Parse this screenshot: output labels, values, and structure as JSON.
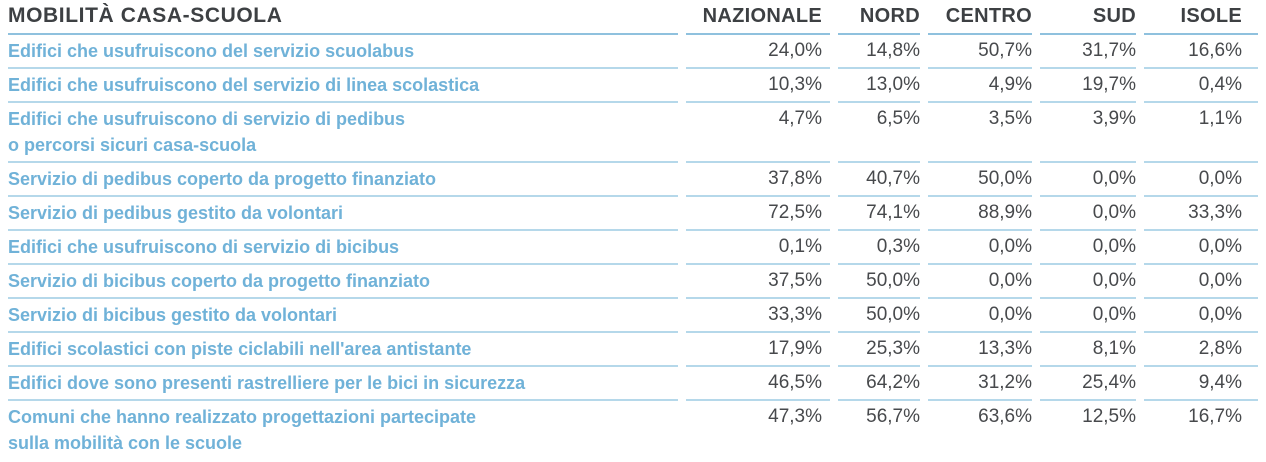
{
  "table": {
    "title": "MOBILITÀ CASA-SCUOLA",
    "columns": [
      "NAZIONALE",
      "NORD",
      "CENTRO",
      "SUD",
      "ISOLE"
    ],
    "rows": [
      {
        "label": "Edifici che usufruiscono del servizio scuolabus",
        "values": [
          "24,0%",
          "14,8%",
          "50,7%",
          "31,7%",
          "16,6%"
        ]
      },
      {
        "label": "Edifici che usufruiscono del servizio di linea scolastica",
        "values": [
          "10,3%",
          "13,0%",
          "4,9%",
          "19,7%",
          "0,4%"
        ]
      },
      {
        "label": "Edifici che usufruiscono di servizio di pedibus\no percorsi sicuri casa-scuola",
        "values": [
          "4,7%",
          "6,5%",
          "3,5%",
          "3,9%",
          "1,1%"
        ]
      },
      {
        "label": "Servizio di pedibus coperto da progetto finanziato",
        "values": [
          "37,8%",
          "40,7%",
          "50,0%",
          "0,0%",
          "0,0%"
        ]
      },
      {
        "label": "Servizio di pedibus gestito da volontari",
        "values": [
          "72,5%",
          "74,1%",
          "88,9%",
          "0,0%",
          "33,3%"
        ]
      },
      {
        "label": "Edifici che usufruiscono di servizio di bicibus",
        "values": [
          "0,1%",
          "0,3%",
          "0,0%",
          "0,0%",
          "0,0%"
        ]
      },
      {
        "label": "Servizio di bicibus coperto da progetto finanziato",
        "values": [
          "37,5%",
          "50,0%",
          "0,0%",
          "0,0%",
          "0,0%"
        ]
      },
      {
        "label": "Servizio di bicibus gestito da volontari",
        "values": [
          "33,3%",
          "50,0%",
          "0,0%",
          "0,0%",
          "0,0%"
        ]
      },
      {
        "label": "Edifici scolastici con piste ciclabili nell'area antistante",
        "values": [
          "17,9%",
          "25,3%",
          "13,3%",
          "8,1%",
          "2,8%"
        ]
      },
      {
        "label": "Edifici dove sono presenti rastrelliere per le bici in sicurezza",
        "values": [
          "46,5%",
          "64,2%",
          "31,2%",
          "25,4%",
          "9,4%"
        ]
      },
      {
        "label": "Comuni che hanno realizzato progettazioni partecipate\nsulla mobilità con le scuole",
        "values": [
          "47,3%",
          "56,7%",
          "63,6%",
          "12,5%",
          "16,7%"
        ]
      }
    ]
  },
  "colors": {
    "label_blue": "#70b2d8",
    "row_divider": "#b5d8ea",
    "header_divider": "#8fc1de",
    "header_text": "#3d4043",
    "value_text": "#47494c",
    "background": "#ffffff"
  },
  "chart_data": {
    "type": "table",
    "title": "MOBILITÀ CASA-SCUOLA",
    "columns": [
      "NAZIONALE",
      "NORD",
      "CENTRO",
      "SUD",
      "ISOLE"
    ],
    "unit": "%",
    "rows": [
      {
        "label": "Edifici che usufruiscono del servizio scuolabus",
        "values": [
          24.0,
          14.8,
          50.7,
          31.7,
          16.6
        ]
      },
      {
        "label": "Edifici che usufruiscono del servizio di linea scolastica",
        "values": [
          10.3,
          13.0,
          4.9,
          19.7,
          0.4
        ]
      },
      {
        "label": "Edifici che usufruiscono di servizio di pedibus o percorsi sicuri casa-scuola",
        "values": [
          4.7,
          6.5,
          3.5,
          3.9,
          1.1
        ]
      },
      {
        "label": "Servizio di pedibus coperto da progetto finanziato",
        "values": [
          37.8,
          40.7,
          50.0,
          0.0,
          0.0
        ]
      },
      {
        "label": "Servizio di pedibus gestito da volontari",
        "values": [
          72.5,
          74.1,
          88.9,
          0.0,
          33.3
        ]
      },
      {
        "label": "Edifici che usufruiscono di servizio di bicibus",
        "values": [
          0.1,
          0.3,
          0.0,
          0.0,
          0.0
        ]
      },
      {
        "label": "Servizio di bicibus coperto da progetto finanziato",
        "values": [
          37.5,
          50.0,
          0.0,
          0.0,
          0.0
        ]
      },
      {
        "label": "Servizio di bicibus gestito da volontari",
        "values": [
          33.3,
          50.0,
          0.0,
          0.0,
          0.0
        ]
      },
      {
        "label": "Edifici scolastici con piste ciclabili nell'area antistante",
        "values": [
          17.9,
          25.3,
          13.3,
          8.1,
          2.8
        ]
      },
      {
        "label": "Edifici dove sono presenti rastrelliere per le bici in sicurezza",
        "values": [
          46.5,
          64.2,
          31.2,
          25.4,
          9.4
        ]
      },
      {
        "label": "Comuni che hanno realizzato progettazioni partecipate sulla mobilità con le scuole",
        "values": [
          47.3,
          56.7,
          63.6,
          12.5,
          16.7
        ]
      }
    ]
  }
}
